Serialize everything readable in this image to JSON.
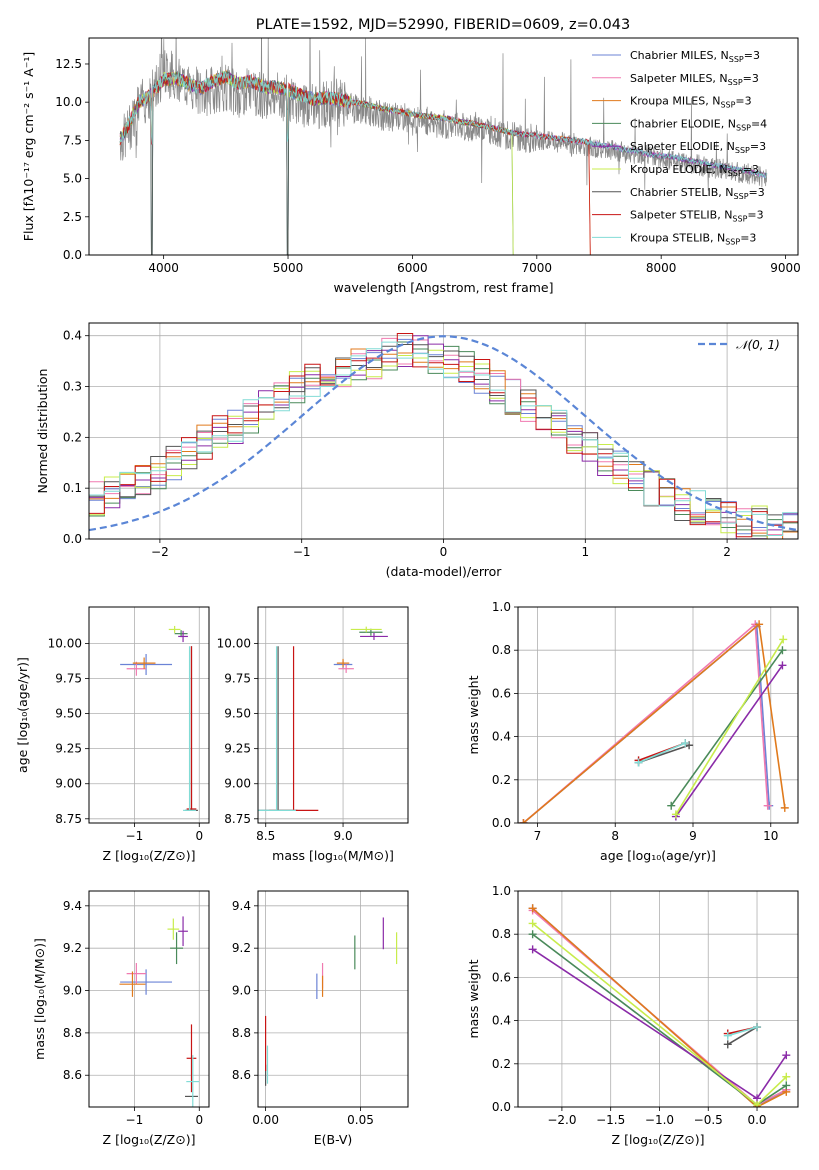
{
  "colors": [
    "#6b83d6",
    "#f07ab0",
    "#e07a1c",
    "#4a8a5a",
    "#8a2ba8",
    "#c8ec4c",
    "#555555",
    "#c81414",
    "#82dcd6"
  ],
  "legend_labels": [
    {
      "pre": "Chabrier MILES, N",
      "sub": "SSP",
      "post": "=3"
    },
    {
      "pre": "Salpeter MILES, N",
      "sub": "SSP",
      "post": "=3"
    },
    {
      "pre": "Kroupa MILES, N",
      "sub": "SSP",
      "post": "=3"
    },
    {
      "pre": "Chabrier ELODIE, N",
      "sub": "SSP",
      "post": "=4"
    },
    {
      "pre": "Salpeter ELODIE, N",
      "sub": "SSP",
      "post": "=3"
    },
    {
      "pre": "Kroupa ELODIE, N",
      "sub": "SSP",
      "post": "=3"
    },
    {
      "pre": "Chabrier STELIB, N",
      "sub": "SSP",
      "post": "=3"
    },
    {
      "pre": "Salpeter STELIB, N",
      "sub": "SSP",
      "post": "=3"
    },
    {
      "pre": "Kroupa STELIB, N",
      "sub": "SSP",
      "post": "=3"
    }
  ],
  "chart_data": [
    {
      "id": "spectrum",
      "type": "line",
      "title": "PLATE=1592, MJD=52990, FIBERID=0609, z=0.043",
      "xlabel": "wavelength [Angstrom, rest frame]",
      "ylabel": "Flux [fλ10⁻¹⁷ erg cm⁻² s⁻¹ A⁻¹]",
      "xlim": [
        3400,
        9100
      ],
      "ylim": [
        0,
        14.2
      ],
      "xticks": [
        4000,
        5000,
        6000,
        7000,
        8000,
        9000
      ],
      "yticks": [
        0.0,
        2.5,
        5.0,
        7.5,
        10.0,
        12.5
      ],
      "observed_color": "#888888",
      "observed": [
        [
          3650,
          7.5
        ],
        [
          3700,
          7.8
        ],
        [
          3800,
          9.8
        ],
        [
          3900,
          10.5
        ],
        [
          3950,
          11.2
        ],
        [
          4000,
          12.0
        ],
        [
          4100,
          11.8
        ],
        [
          4200,
          11.0
        ],
        [
          4300,
          10.5
        ],
        [
          4400,
          10.8
        ],
        [
          4500,
          11.0
        ],
        [
          4600,
          10.5
        ],
        [
          4700,
          10.8
        ],
        [
          4800,
          10.5
        ],
        [
          4900,
          10.4
        ],
        [
          5000,
          10.2
        ],
        [
          5100,
          10.0
        ],
        [
          5200,
          9.6
        ],
        [
          5300,
          9.9
        ],
        [
          5400,
          10.0
        ],
        [
          5500,
          9.6
        ],
        [
          5600,
          9.5
        ],
        [
          5700,
          9.3
        ],
        [
          5800,
          9.0
        ],
        [
          5900,
          9.1
        ],
        [
          6000,
          8.8
        ],
        [
          6100,
          8.8
        ],
        [
          6200,
          8.6
        ],
        [
          6300,
          8.5
        ],
        [
          6400,
          8.4
        ],
        [
          6500,
          8.4
        ],
        [
          6600,
          8.2
        ],
        [
          6700,
          8.0
        ],
        [
          6800,
          7.8
        ],
        [
          6900,
          7.6
        ],
        [
          7000,
          7.6
        ],
        [
          7100,
          7.4
        ],
        [
          7200,
          7.4
        ],
        [
          7300,
          7.3
        ],
        [
          7400,
          7.1
        ],
        [
          7500,
          7.0
        ],
        [
          7600,
          6.9
        ],
        [
          7700,
          6.7
        ],
        [
          7800,
          6.6
        ],
        [
          7900,
          6.5
        ],
        [
          8000,
          6.3
        ],
        [
          8100,
          6.2
        ],
        [
          8200,
          6.0
        ],
        [
          8300,
          5.9
        ],
        [
          8400,
          5.7
        ],
        [
          8500,
          5.6
        ],
        [
          8600,
          5.4
        ],
        [
          8700,
          5.3
        ],
        [
          8800,
          5.1
        ],
        [
          8850,
          5.0
        ]
      ],
      "models": [
        [
          3650,
          7.6
        ],
        [
          3700,
          8.2
        ],
        [
          3800,
          10.0
        ],
        [
          3900,
          10.5
        ],
        [
          4000,
          11.5
        ],
        [
          4100,
          11.6
        ],
        [
          4200,
          11.2
        ],
        [
          4300,
          10.9
        ],
        [
          4400,
          11.4
        ],
        [
          4500,
          11.7
        ],
        [
          4600,
          11.2
        ],
        [
          4700,
          11.4
        ],
        [
          4800,
          11.0
        ],
        [
          4900,
          11.0
        ],
        [
          5000,
          10.8
        ],
        [
          5100,
          10.5
        ],
        [
          5200,
          10.2
        ],
        [
          5300,
          10.3
        ],
        [
          5400,
          10.2
        ],
        [
          5500,
          10.0
        ],
        [
          5600,
          9.9
        ],
        [
          5700,
          9.7
        ],
        [
          5800,
          9.5
        ],
        [
          5900,
          9.4
        ],
        [
          6000,
          9.2
        ],
        [
          6100,
          9.1
        ],
        [
          6200,
          9.0
        ],
        [
          6300,
          8.9
        ],
        [
          6400,
          8.7
        ],
        [
          6500,
          8.6
        ],
        [
          6600,
          8.4
        ],
        [
          6700,
          8.2
        ],
        [
          6800,
          8.0
        ],
        [
          6900,
          7.9
        ],
        [
          7000,
          7.8
        ],
        [
          7100,
          7.7
        ],
        [
          7200,
          7.6
        ],
        [
          7300,
          7.5
        ],
        [
          7400,
          7.4
        ],
        [
          7500,
          7.2
        ],
        [
          7600,
          7.1
        ],
        [
          7700,
          6.9
        ],
        [
          7800,
          6.8
        ],
        [
          7900,
          6.6
        ],
        [
          8000,
          6.5
        ],
        [
          8100,
          6.4
        ],
        [
          8200,
          6.2
        ],
        [
          8300,
          6.1
        ],
        [
          8400,
          5.9
        ],
        [
          8500,
          5.8
        ],
        [
          8600,
          5.6
        ],
        [
          8700,
          5.5
        ],
        [
          8800,
          5.3
        ],
        [
          8850,
          5.2
        ]
      ],
      "legend_position": "upper-right"
    },
    {
      "id": "residuals",
      "type": "line",
      "xlabel": "(data-model)/error",
      "ylabel": "Normed distribution",
      "xlim": [
        -2.5,
        2.5
      ],
      "ylim": [
        0,
        0.425
      ],
      "xticks": [
        -2,
        -1,
        0,
        1,
        2
      ],
      "yticks": [
        0.0,
        0.1,
        0.2,
        0.3,
        0.4
      ],
      "normal_label": "𝒩(0, 1)",
      "normal_color": "#5b86d6",
      "hist": [
        0.08,
        0.09,
        0.1,
        0.11,
        0.13,
        0.15,
        0.17,
        0.19,
        0.21,
        0.22,
        0.24,
        0.26,
        0.28,
        0.3,
        0.31,
        0.32,
        0.33,
        0.34,
        0.35,
        0.36,
        0.37,
        0.37,
        0.36,
        0.35,
        0.34,
        0.32,
        0.3,
        0.28,
        0.26,
        0.24,
        0.22,
        0.2,
        0.18,
        0.16,
        0.14,
        0.12,
        0.1,
        0.09,
        0.07,
        0.06,
        0.05,
        0.04,
        0.03,
        0.03,
        0.02,
        0.02
      ],
      "legend_position": "upper-right"
    },
    {
      "id": "age_vs_Z",
      "type": "scatter",
      "xlabel": "Z [log₁₀(Z/Z⊙)]",
      "ylabel": "age  [log₁₀(age/yr)]",
      "xlim": [
        -1.7,
        0.15
      ],
      "ylim": [
        8.72,
        10.26
      ],
      "xticks": [
        -1,
        0
      ],
      "yticks": [
        8.75,
        9.0,
        9.25,
        9.5,
        9.75,
        10.0
      ],
      "points": [
        {
          "s": 0,
          "x": -0.82,
          "y": 9.85,
          "ex": 0.8,
          "ey": 0.15
        },
        {
          "s": 1,
          "x": -0.97,
          "y": 9.82,
          "ex": 0.3,
          "ey": 0.1
        },
        {
          "s": 2,
          "x": -0.85,
          "y": 9.86,
          "ex": 0.35,
          "ey": 0.08
        },
        {
          "s": 3,
          "x": -0.28,
          "y": 10.07,
          "ex": 0.2,
          "ey": 0.05
        },
        {
          "s": 4,
          "x": -0.25,
          "y": 10.05,
          "ex": 0.15,
          "ey": 0.08
        },
        {
          "s": 5,
          "x": -0.38,
          "y": 10.1,
          "ex": 0.18,
          "ey": 0.05
        },
        {
          "s": 6,
          "x": -0.12,
          "y": 8.81,
          "ex": 0.2,
          "ey": 0.0
        },
        {
          "s": 7,
          "x": -0.12,
          "y": 8.82,
          "ex": 0.15,
          "ey": 0.0
        },
        {
          "s": 8,
          "x": -0.15,
          "y": 8.81,
          "ex": 0.2,
          "ey": 0.0
        }
      ]
    },
    {
      "id": "age_vs_mass",
      "type": "scatter",
      "xlabel": "mass [log₁₀(M/M⊙)]",
      "ylabel": "",
      "xlim": [
        8.45,
        9.42
      ],
      "ylim": [
        8.72,
        10.26
      ],
      "xticks": [
        8.5,
        9.0
      ],
      "yticks": [
        8.75,
        9.0,
        9.25,
        9.5,
        9.75,
        10.0
      ],
      "points": [
        {
          "s": 0,
          "x": 9.0,
          "y": 9.85,
          "ex": 0.12,
          "ey": 0.06
        },
        {
          "s": 1,
          "x": 9.02,
          "y": 9.82,
          "ex": 0.1,
          "ey": 0.06
        },
        {
          "s": 2,
          "x": 9.0,
          "y": 9.86,
          "ex": 0.08,
          "ey": 0.06
        },
        {
          "s": 3,
          "x": 9.18,
          "y": 10.08,
          "ex": 0.15,
          "ey": 0.05
        },
        {
          "s": 4,
          "x": 9.2,
          "y": 10.05,
          "ex": 0.18,
          "ey": 0.05
        },
        {
          "s": 5,
          "x": 9.15,
          "y": 10.1,
          "ex": 0.2,
          "ey": 0.04
        },
        {
          "s": 6,
          "x": 8.58,
          "y": 8.81,
          "ex": 0.25,
          "ey": 0.0
        },
        {
          "s": 7,
          "x": 8.68,
          "y": 8.81,
          "ex": 0.32,
          "ey": 0.0
        },
        {
          "s": 8,
          "x": 8.57,
          "y": 8.81,
          "ex": 0.25,
          "ey": 0.0
        }
      ]
    },
    {
      "id": "weight_vs_age",
      "type": "line",
      "xlabel": "age  [log₁₀(age/yr)]",
      "ylabel": "mass weight",
      "xlim": [
        6.75,
        10.35
      ],
      "ylim": [
        0,
        1
      ],
      "xticks": [
        7,
        8,
        9,
        10
      ],
      "yticks": [
        0.0,
        0.2,
        0.4,
        0.6,
        0.8,
        1.0
      ],
      "series": [
        {
          "s": 0,
          "x": [
            6.82,
            9.82,
            9.98
          ],
          "y": [
            0.0,
            0.91,
            0.08
          ]
        },
        {
          "s": 1,
          "x": [
            6.82,
            9.8,
            9.96
          ],
          "y": [
            0.0,
            0.92,
            0.08
          ]
        },
        {
          "s": 2,
          "x": [
            6.82,
            9.85,
            10.18
          ],
          "y": [
            0.0,
            0.92,
            0.07
          ]
        },
        {
          "s": 3,
          "x": [
            8.72,
            10.15
          ],
          "y": [
            0.08,
            0.8
          ]
        },
        {
          "s": 4,
          "x": [
            8.78,
            10.15
          ],
          "y": [
            0.03,
            0.73
          ]
        },
        {
          "s": 5,
          "x": [
            8.78,
            10.16
          ],
          "y": [
            0.04,
            0.85
          ]
        },
        {
          "s": 6,
          "x": [
            8.3,
            8.95
          ],
          "y": [
            0.28,
            0.36
          ]
        },
        {
          "s": 7,
          "x": [
            8.3,
            8.9
          ],
          "y": [
            0.29,
            0.37
          ]
        },
        {
          "s": 8,
          "x": [
            8.3,
            8.9
          ],
          "y": [
            0.28,
            0.37
          ]
        }
      ]
    },
    {
      "id": "mass_vs_Z",
      "type": "scatter",
      "xlabel": "Z [log₁₀(Z/Z⊙)]",
      "ylabel": "mass [log₁₀(M/M⊙)]",
      "xlim": [
        -1.7,
        0.15
      ],
      "ylim": [
        8.45,
        9.47
      ],
      "xticks": [
        -1,
        0
      ],
      "yticks": [
        8.6,
        8.8,
        9.0,
        9.2,
        9.4
      ],
      "points": [
        {
          "s": 0,
          "x": -0.82,
          "y": 9.04,
          "ex": 0.8,
          "ey": 0.12
        },
        {
          "s": 1,
          "x": -0.97,
          "y": 9.08,
          "ex": 0.3,
          "ey": 0.1
        },
        {
          "s": 2,
          "x": -1.03,
          "y": 9.03,
          "ex": 0.4,
          "ey": 0.12
        },
        {
          "s": 3,
          "x": -0.35,
          "y": 9.2,
          "ex": 0.2,
          "ey": 0.15
        },
        {
          "s": 4,
          "x": -0.25,
          "y": 9.28,
          "ex": 0.15,
          "ey": 0.14
        },
        {
          "s": 5,
          "x": -0.4,
          "y": 9.29,
          "ex": 0.18,
          "ey": 0.1
        },
        {
          "s": 6,
          "x": -0.12,
          "y": 8.5,
          "ex": 0.2,
          "ey": 0.0
        },
        {
          "s": 7,
          "x": -0.12,
          "y": 8.68,
          "ex": 0.15,
          "ey": 0.32
        },
        {
          "s": 8,
          "x": -0.1,
          "y": 8.57,
          "ex": 0.2,
          "ey": 0.25
        }
      ]
    },
    {
      "id": "mass_vs_EBV",
      "type": "scatter",
      "xlabel": "E(B-V)",
      "ylabel": "",
      "xlim": [
        -0.004,
        0.075
      ],
      "ylim": [
        8.45,
        9.47
      ],
      "xticks": [
        0.0,
        0.05
      ],
      "yticks": [
        8.6,
        8.8,
        9.0,
        9.2,
        9.4
      ],
      "xtick_labels": [
        "0.00",
        "0.05"
      ],
      "points": [
        {
          "s": 0,
          "x": 0.027,
          "y": 9.02,
          "ex": 0,
          "ey": 0.12
        },
        {
          "s": 1,
          "x": 0.03,
          "y": 9.07,
          "ex": 0,
          "ey": 0.12
        },
        {
          "s": 2,
          "x": 0.03,
          "y": 9.02,
          "ex": 0,
          "ey": 0.1
        },
        {
          "s": 3,
          "x": 0.047,
          "y": 9.18,
          "ex": 0,
          "ey": 0.16
        },
        {
          "s": 4,
          "x": 0.062,
          "y": 9.27,
          "ex": 0,
          "ey": 0.15
        },
        {
          "s": 5,
          "x": 0.069,
          "y": 9.2,
          "ex": 0,
          "ey": 0.15
        },
        {
          "s": 6,
          "x": 0.0,
          "y": 8.6,
          "ex": 0,
          "ey": 0.1
        },
        {
          "s": 7,
          "x": 0.0,
          "y": 8.75,
          "ex": 0,
          "ey": 0.26
        },
        {
          "s": 8,
          "x": 0.001,
          "y": 8.65,
          "ex": 0,
          "ey": 0.18
        }
      ]
    },
    {
      "id": "weight_vs_Z",
      "type": "line",
      "xlabel": "Z [log₁₀(Z/Z⊙)]",
      "ylabel": "mass weight",
      "xlim": [
        -2.45,
        0.42
      ],
      "ylim": [
        0,
        1
      ],
      "xticks": [
        -2.0,
        -1.5,
        -1.0,
        -0.5,
        0.0
      ],
      "xtick_labels": [
        "−2.0",
        "−1.5",
        "−1.0",
        "−0.5",
        "0.0"
      ],
      "yticks": [
        0.0,
        0.2,
        0.4,
        0.6,
        0.8,
        1.0
      ],
      "series": [
        {
          "s": 0,
          "x": [
            -2.3,
            0.0,
            0.3
          ],
          "y": [
            0.92,
            0.0,
            0.08
          ]
        },
        {
          "s": 1,
          "x": [
            -2.3,
            0.0,
            0.3
          ],
          "y": [
            0.91,
            0.01,
            0.08
          ]
        },
        {
          "s": 2,
          "x": [
            -2.3,
            0.0,
            0.3
          ],
          "y": [
            0.92,
            0.0,
            0.07
          ]
        },
        {
          "s": 3,
          "x": [
            -2.3,
            0.0,
            0.3
          ],
          "y": [
            0.8,
            0.01,
            0.1
          ]
        },
        {
          "s": 4,
          "x": [
            -2.3,
            0.0,
            0.3
          ],
          "y": [
            0.73,
            0.04,
            0.24
          ]
        },
        {
          "s": 5,
          "x": [
            -2.3,
            0.0,
            0.3
          ],
          "y": [
            0.85,
            0.01,
            0.14
          ]
        },
        {
          "s": 6,
          "x": [
            -0.3,
            0.0
          ],
          "y": [
            0.29,
            0.37
          ]
        },
        {
          "s": 7,
          "x": [
            -0.3,
            0.0
          ],
          "y": [
            0.34,
            0.37
          ]
        },
        {
          "s": 8,
          "x": [
            -0.3,
            0.0
          ],
          "y": [
            0.33,
            0.37
          ]
        }
      ]
    }
  ]
}
